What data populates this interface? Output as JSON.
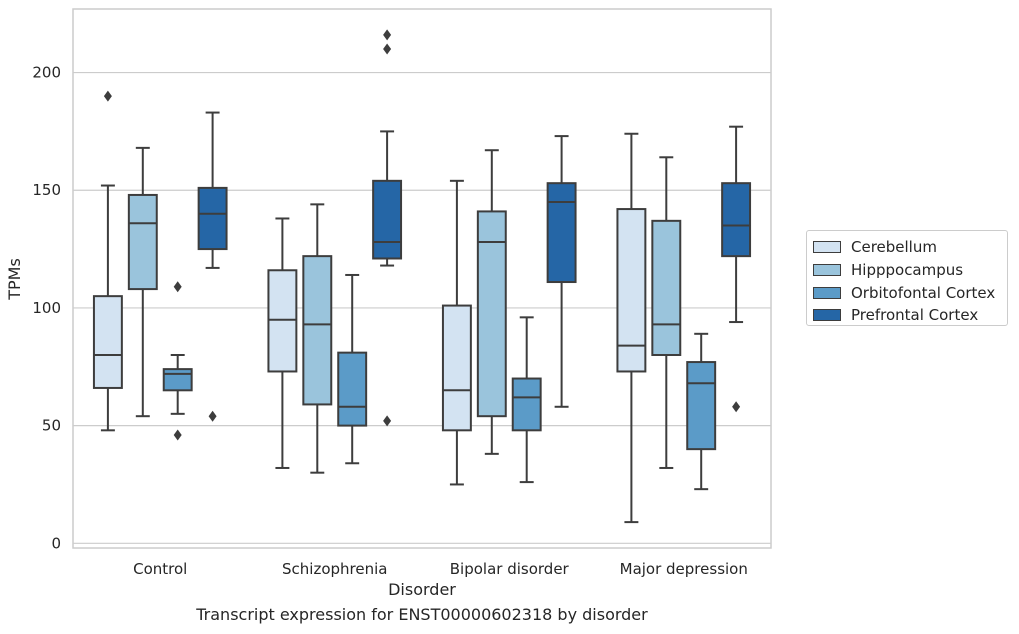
{
  "chart_data": {
    "type": "box",
    "xlabel": "Disorder",
    "ylabel": "TPMs",
    "caption": "Transcript expression for ENST00000602318 by disorder",
    "ylim": [
      -2,
      227
    ],
    "yticks": [
      0,
      50,
      100,
      150,
      200
    ],
    "grid": "horizontal",
    "legend_position": "right",
    "categories": [
      "Control",
      "Schizophrenia",
      "Bipolar disorder",
      "Major depression"
    ],
    "series": [
      {
        "name": "Cerebellum",
        "color": "#d3e3f2",
        "boxes": [
          {
            "whislo": 48,
            "q1": 66,
            "med": 80,
            "q3": 105,
            "whishi": 152,
            "fliers": [
              190
            ]
          },
          {
            "whislo": 32,
            "q1": 73,
            "med": 95,
            "q3": 116,
            "whishi": 138,
            "fliers": []
          },
          {
            "whislo": 25,
            "q1": 48,
            "med": 65,
            "q3": 101,
            "whishi": 154,
            "fliers": []
          },
          {
            "whislo": 9,
            "q1": 73,
            "med": 84,
            "q3": 142,
            "whishi": 174,
            "fliers": []
          }
        ]
      },
      {
        "name": "Hipppocampus",
        "color": "#9ac4dc",
        "boxes": [
          {
            "whislo": 54,
            "q1": 108,
            "med": 136,
            "q3": 148,
            "whishi": 168,
            "fliers": []
          },
          {
            "whislo": 30,
            "q1": 59,
            "med": 93,
            "q3": 122,
            "whishi": 144,
            "fliers": []
          },
          {
            "whislo": 38,
            "q1": 54,
            "med": 128,
            "q3": 141,
            "whishi": 167,
            "fliers": []
          },
          {
            "whislo": 32,
            "q1": 80,
            "med": 93,
            "q3": 137,
            "whishi": 164,
            "fliers": []
          }
        ]
      },
      {
        "name": "Orbitofontal Cortex",
        "color": "#5b9bc8",
        "boxes": [
          {
            "whislo": 55,
            "q1": 65,
            "med": 72,
            "q3": 74,
            "whishi": 80,
            "fliers": [
              109,
              46
            ]
          },
          {
            "whislo": 34,
            "q1": 50,
            "med": 58,
            "q3": 81,
            "whishi": 114,
            "fliers": []
          },
          {
            "whislo": 26,
            "q1": 48,
            "med": 62,
            "q3": 70,
            "whishi": 96,
            "fliers": []
          },
          {
            "whislo": 23,
            "q1": 40,
            "med": 68,
            "q3": 77,
            "whishi": 89,
            "fliers": []
          }
        ]
      },
      {
        "name": "Prefrontal Cortex",
        "color": "#2566a6",
        "boxes": [
          {
            "whislo": 117,
            "q1": 125,
            "med": 140,
            "q3": 151,
            "whishi": 183,
            "fliers": [
              54
            ]
          },
          {
            "whislo": 118,
            "q1": 121,
            "med": 128,
            "q3": 154,
            "whishi": 175,
            "fliers": [
              52,
              210,
              216
            ]
          },
          {
            "whislo": 58,
            "q1": 111,
            "med": 145,
            "q3": 153,
            "whishi": 173,
            "fliers": []
          },
          {
            "whislo": 94,
            "q1": 122,
            "med": 135,
            "q3": 153,
            "whishi": 177,
            "fliers": [
              58
            ]
          }
        ]
      }
    ]
  }
}
